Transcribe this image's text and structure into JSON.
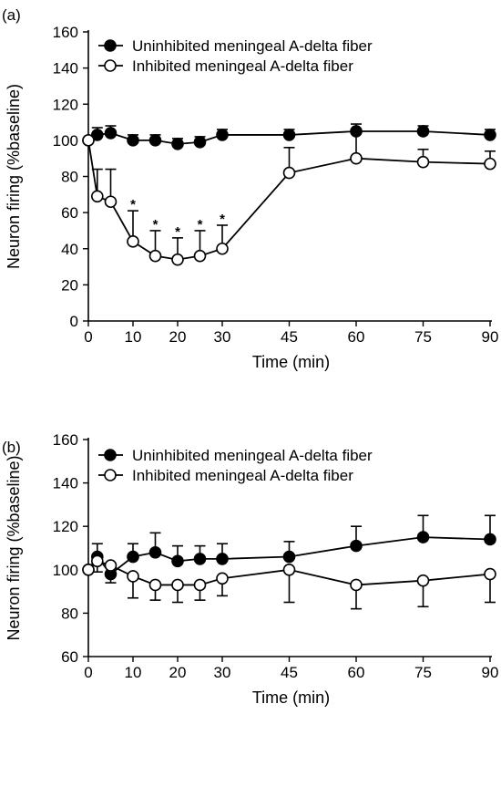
{
  "chart_data": [
    {
      "panel": "(a)",
      "type": "line",
      "xlabel": "Time (min)",
      "ylabel": "Neuron firing (%baseline)",
      "xlim": [
        0,
        90
      ],
      "ylim": [
        0,
        160
      ],
      "x_ticks": [
        0,
        10,
        20,
        30,
        45,
        60,
        75,
        90
      ],
      "y_ticks": [
        0,
        20,
        40,
        60,
        80,
        100,
        120,
        140,
        160
      ],
      "grid": false,
      "legend": "top-left",
      "series": [
        {
          "name": "Uninhibited meningeal A-delta fiber",
          "marker": "filled-circle",
          "x": [
            0,
            2,
            5,
            10,
            15,
            20,
            25,
            30,
            45,
            60,
            75,
            90
          ],
          "y": [
            100,
            103,
            104,
            100,
            100,
            98,
            99,
            103,
            103,
            105,
            105,
            103
          ],
          "error": [
            0,
            4,
            4,
            3,
            3,
            3,
            3,
            3,
            3,
            4,
            3,
            3
          ]
        },
        {
          "name": "Inhibited meningeal A-delta fiber",
          "marker": "open-circle",
          "x": [
            0,
            2,
            5,
            10,
            15,
            20,
            25,
            30,
            45,
            60,
            75,
            90
          ],
          "y": [
            100,
            69,
            66,
            44,
            36,
            34,
            36,
            40,
            82,
            90,
            88,
            87
          ],
          "error": [
            0,
            15,
            18,
            17,
            14,
            12,
            14,
            13,
            14,
            15,
            7,
            7
          ]
        }
      ],
      "annotations": [
        {
          "text": "*",
          "x": 10,
          "y": 61
        },
        {
          "text": "*",
          "x": 15,
          "y": 50
        },
        {
          "text": "*",
          "x": 20,
          "y": 46
        },
        {
          "text": "*",
          "x": 25,
          "y": 50
        },
        {
          "text": "*",
          "x": 30,
          "y": 53
        }
      ]
    },
    {
      "panel": "(b)",
      "type": "line",
      "xlabel": "Time (min)",
      "ylabel": "Neuron firing (%baseline)",
      "xlim": [
        0,
        90
      ],
      "ylim": [
        60,
        160
      ],
      "x_ticks": [
        0,
        10,
        20,
        30,
        45,
        60,
        75,
        90
      ],
      "y_ticks": [
        60,
        80,
        100,
        120,
        140,
        160
      ],
      "grid": false,
      "legend": "top-left",
      "series": [
        {
          "name": "Uninhibited meningeal A-delta fiber",
          "marker": "filled-circle",
          "x": [
            0,
            2,
            5,
            10,
            15,
            20,
            25,
            30,
            45,
            60,
            75,
            90
          ],
          "y": [
            100,
            106,
            98,
            106,
            108,
            104,
            105,
            105,
            106,
            111,
            115,
            114
          ],
          "error": [
            0,
            6,
            4,
            6,
            9,
            7,
            6,
            7,
            7,
            9,
            10,
            11
          ]
        },
        {
          "name": "Inhibited meningeal A-delta fiber",
          "marker": "open-circle",
          "x": [
            0,
            2,
            5,
            10,
            15,
            20,
            25,
            30,
            45,
            60,
            75,
            90
          ],
          "y": [
            100,
            104,
            102,
            97,
            93,
            93,
            93,
            96,
            100,
            93,
            95,
            98
          ],
          "error": [
            0,
            5,
            3,
            10,
            7,
            8,
            7,
            8,
            15,
            11,
            12,
            13
          ]
        }
      ]
    }
  ]
}
